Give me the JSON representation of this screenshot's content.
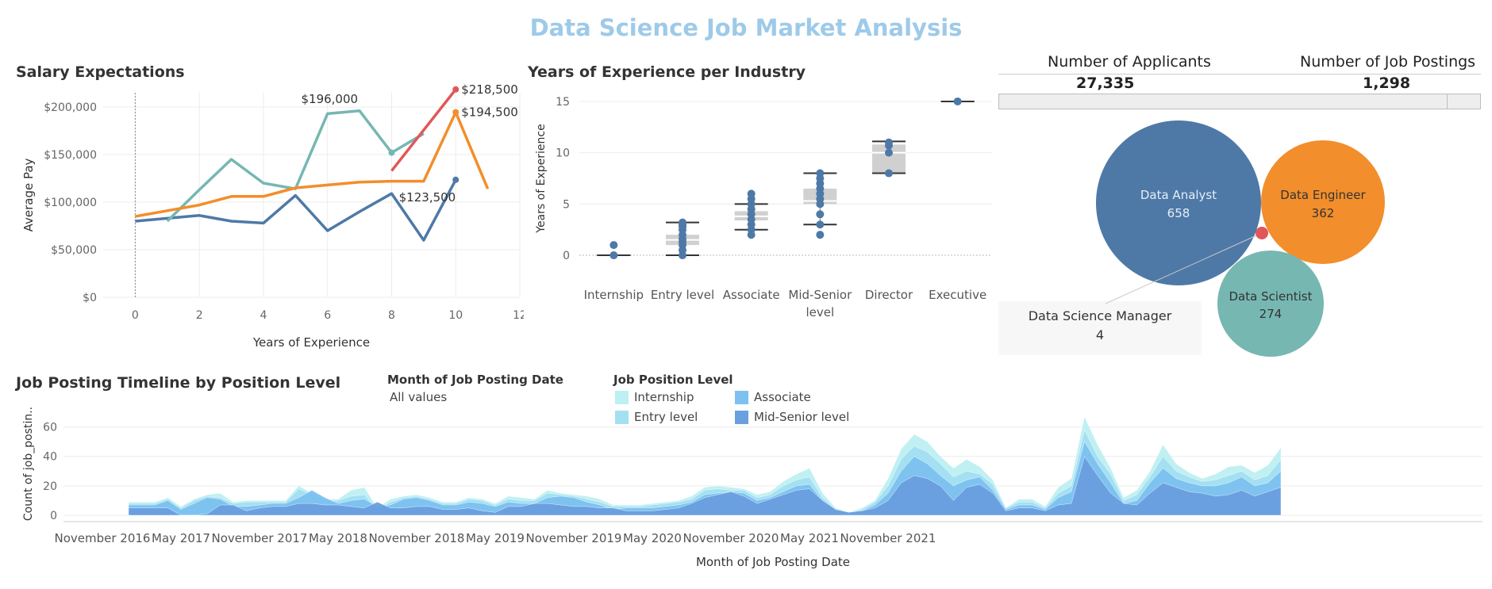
{
  "title": "Data Science Job Market Analysis",
  "salary_chart": {
    "title": "Salary Expectations",
    "xlabel": "Years of Experience",
    "ylabel": "Average Pay",
    "xticks": [
      "0",
      "2",
      "4",
      "6",
      "8",
      "10",
      "12"
    ],
    "yticks": [
      "$0",
      "$50,000",
      "$100,000",
      "$150,000",
      "$200,000"
    ],
    "annotations": [
      "$196,000",
      "$218,500",
      "$194,500",
      "$123,500"
    ]
  },
  "experience_chart": {
    "title": "Years of Experience per Industry",
    "ylabel": "Years of Experience",
    "yticks": [
      "0",
      "5",
      "10",
      "15"
    ],
    "categories": [
      "Internship",
      "Entry level",
      "Associate",
      "Mid-Senior level",
      "Director",
      "Executive"
    ],
    "category_lines": [
      [
        "Internship"
      ],
      [
        "Entry level"
      ],
      [
        "Associate"
      ],
      [
        "Mid-Senior",
        "level"
      ],
      [
        "Director"
      ],
      [
        "Executive"
      ]
    ]
  },
  "kpis": {
    "applicants_label": "Number of Applicants",
    "applicants_value": "27,335",
    "postings_label": "Number of Job Postings",
    "postings_value": "1,298"
  },
  "bubbles": [
    {
      "label": "Data Analyst",
      "value": "658",
      "color": "#4e79a7"
    },
    {
      "label": "Data Engineer",
      "value": "362",
      "color": "#f28e2b"
    },
    {
      "label": "Data Scientist",
      "value": "274",
      "color": "#76b7b2"
    },
    {
      "label": "Data Science Manager",
      "value": "4",
      "color": "#e15759"
    }
  ],
  "timeline": {
    "title": "Job Posting Timeline by Position Level",
    "xlabel": "Month of Job Posting Date",
    "ylabel": "Count of job_postin..",
    "yticks": [
      "0",
      "20",
      "40",
      "60"
    ],
    "xticks": [
      "November 2016",
      "May 2017",
      "November 2017",
      "May 2018",
      "November 2018",
      "May 2019",
      "November 2019",
      "May 2020",
      "November 2020",
      "May 2021",
      "November 2021"
    ],
    "filter_title": "Month of Job Posting Date",
    "filter_value": "All values",
    "legend_title": "Job Position Level",
    "legend": [
      {
        "label": "Internship",
        "color": "#bdf0f2"
      },
      {
        "label": "Entry level",
        "color": "#a3e0f2"
      },
      {
        "label": "Associate",
        "color": "#7cc1f0"
      },
      {
        "label": "Mid-Senior level",
        "color": "#6a9fe0"
      }
    ]
  },
  "chart_data": [
    {
      "type": "line",
      "title": "Salary Expectations",
      "xlabel": "Years of Experience",
      "ylabel": "Average Pay",
      "xlim": [
        -1,
        12
      ],
      "ylim": [
        0,
        215000
      ],
      "series": [
        {
          "color": "#4e79a7",
          "x": [
            0,
            2,
            3,
            4,
            5,
            6,
            7,
            8,
            9,
            10
          ],
          "y": [
            80000,
            86000,
            80000,
            78000,
            107000,
            70000,
            90000,
            109000,
            60000,
            123500
          ]
        },
        {
          "color": "#76b7b2",
          "x": [
            1,
            2,
            3,
            4,
            5,
            6,
            7,
            8,
            9
          ],
          "y": [
            80000,
            113000,
            145000,
            120000,
            114000,
            193000,
            196000,
            152000,
            172000
          ]
        },
        {
          "color": "#f28e2b",
          "x": [
            0,
            1,
            2,
            3,
            4,
            5,
            6,
            7,
            8,
            9,
            10,
            11
          ],
          "y": [
            85000,
            91000,
            97000,
            106000,
            106000,
            115000,
            118000,
            121000,
            122000,
            122000,
            194500,
            114000
          ]
        },
        {
          "color": "#e15759",
          "x": [
            8,
            10
          ],
          "y": [
            133000,
            218500
          ]
        }
      ]
    },
    {
      "type": "box",
      "title": "Years of Experience per Industry",
      "ylabel": "Years of Experience",
      "ylim": [
        -1,
        16
      ],
      "categories": [
        "Internship",
        "Entry level",
        "Associate",
        "Mid-Senior level",
        "Director",
        "Executive"
      ],
      "boxes": [
        {
          "min": 0,
          "q1": 0,
          "median": 0,
          "q3": 0,
          "max": 0,
          "points": [
            0,
            1
          ]
        },
        {
          "min": 0,
          "q1": 1,
          "median": 1.5,
          "q3": 2,
          "max": 3.2,
          "points": [
            0,
            0.5,
            1,
            1.3,
            1.6,
            2,
            2.5,
            2.8,
            3,
            3.2
          ]
        },
        {
          "min": 2.5,
          "q1": 3.4,
          "median": 3.8,
          "q3": 4.3,
          "max": 5,
          "points": [
            2,
            2.5,
            3,
            3.5,
            4,
            4.5,
            5,
            5.5,
            6
          ]
        },
        {
          "min": 3,
          "q1": 5,
          "median": 5.3,
          "q3": 6.5,
          "max": 8,
          "points": [
            2,
            3,
            4,
            5,
            5.5,
            6,
            6.5,
            7,
            7.5,
            8
          ]
        },
        {
          "min": 8,
          "q1": 8,
          "median": 10,
          "q3": 10.8,
          "max": 11.1,
          "points": [
            8,
            10,
            10.7,
            11
          ]
        },
        {
          "min": 15,
          "q1": 15,
          "median": 15,
          "q3": 15,
          "max": 15,
          "points": [
            15
          ]
        }
      ]
    },
    {
      "type": "area",
      "title": "Job Posting Timeline by Position Level",
      "xlabel": "Month of Job Posting Date",
      "ylabel": "Count of job_postin..",
      "ylim": [
        0,
        70
      ],
      "start_month": "2017-01",
      "series": [
        {
          "name": "Mid-Senior level",
          "color": "#6a9fe0",
          "values": [
            5,
            5,
            5,
            5,
            0,
            0,
            1,
            7,
            7,
            3,
            5,
            6,
            6,
            8,
            8,
            7,
            7,
            6,
            5,
            9,
            5,
            5,
            6,
            6,
            4,
            4,
            5,
            3,
            2,
            6,
            6,
            8,
            8,
            7,
            6,
            6,
            5,
            5,
            3,
            3,
            3,
            4,
            5,
            8,
            12,
            14,
            16,
            13,
            8,
            11,
            14,
            17,
            18,
            10,
            4,
            2,
            3,
            5,
            10,
            22,
            27,
            25,
            20,
            10,
            19,
            21,
            15,
            3,
            5,
            5,
            3,
            7,
            8,
            40,
            27,
            15,
            8,
            7,
            15,
            22,
            19,
            16,
            15,
            13,
            14,
            17,
            13,
            16,
            19
          ]
        },
        {
          "name": "Associate",
          "color": "#7cc1f0",
          "values": [
            7,
            7,
            7,
            10,
            4,
            8,
            12,
            11,
            6,
            6,
            7,
            8,
            8,
            12,
            17,
            12,
            8,
            10,
            11,
            6,
            7,
            11,
            12,
            10,
            7,
            7,
            9,
            8,
            6,
            9,
            8,
            8,
            12,
            13,
            12,
            9,
            7,
            4,
            5,
            5,
            5,
            6,
            7,
            9,
            14,
            15,
            16,
            15,
            10,
            12,
            16,
            20,
            21,
            10,
            3,
            2,
            3,
            7,
            15,
            30,
            40,
            35,
            27,
            20,
            24,
            26,
            17,
            4,
            7,
            7,
            4,
            12,
            16,
            50,
            35,
            22,
            8,
            10,
            22,
            32,
            25,
            22,
            20,
            20,
            22,
            26,
            20,
            22,
            30
          ]
        },
        {
          "name": "Entry level",
          "color": "#a3e0f2",
          "values": [
            8,
            8,
            8,
            11,
            5,
            10,
            13,
            12,
            8,
            9,
            9,
            9,
            9,
            18,
            14,
            10,
            10,
            13,
            14,
            4,
            9,
            12,
            13,
            11,
            8,
            8,
            11,
            10,
            7,
            11,
            10,
            10,
            15,
            14,
            13,
            11,
            9,
            6,
            6,
            6,
            7,
            8,
            9,
            11,
            17,
            18,
            17,
            17,
            12,
            14,
            20,
            24,
            26,
            12,
            4,
            2,
            4,
            9,
            20,
            38,
            47,
            43,
            35,
            26,
            30,
            28,
            21,
            5,
            9,
            9,
            5,
            15,
            20,
            58,
            40,
            28,
            10,
            14,
            26,
            40,
            30,
            26,
            23,
            24,
            27,
            30,
            24,
            27,
            38
          ]
        },
        {
          "name": "Internship",
          "color": "#bdf0f2",
          "values": [
            9,
            9,
            9,
            12,
            6,
            11,
            14,
            15,
            9,
            10,
            10,
            10,
            10,
            20,
            15,
            11,
            11,
            17,
            19,
            5,
            11,
            13,
            14,
            12,
            9,
            9,
            12,
            11,
            8,
            13,
            12,
            11,
            17,
            15,
            14,
            13,
            11,
            7,
            7,
            7,
            8,
            9,
            10,
            13,
            19,
            20,
            19,
            18,
            14,
            16,
            23,
            28,
            32,
            15,
            5,
            2,
            5,
            10,
            25,
            45,
            55,
            50,
            40,
            32,
            38,
            33,
            24,
            5,
            11,
            11,
            6,
            19,
            25,
            67,
            48,
            32,
            12,
            17,
            30,
            48,
            35,
            29,
            25,
            28,
            33,
            34,
            29,
            34,
            46
          ]
        }
      ]
    }
  ]
}
